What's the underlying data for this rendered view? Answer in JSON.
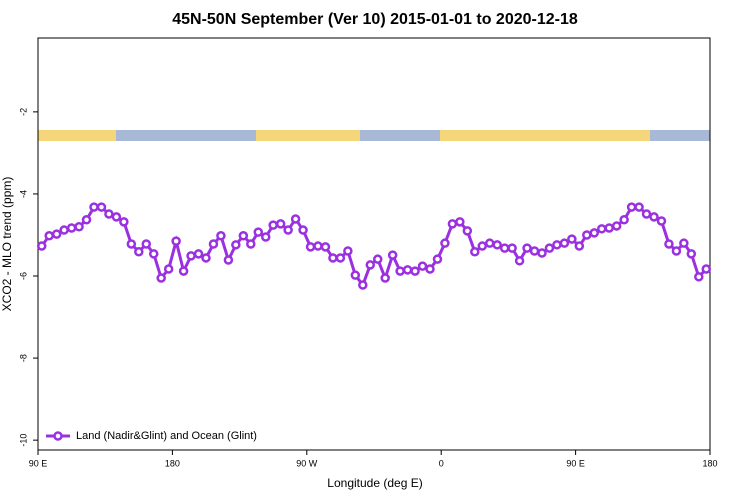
{
  "chart_data": {
    "type": "line",
    "title": "45N-50N September (Ver 10)   2015-01-01 to 2020-12-18",
    "xlabel": "Longitude (deg E)",
    "ylabel": "XCO2 - MLO trend (ppm)",
    "xlim": [
      90,
      540
    ],
    "xticks": [
      {
        "value": 90,
        "label": "90 E"
      },
      {
        "value": 180,
        "label": "180"
      },
      {
        "value": 270,
        "label": "90 W"
      },
      {
        "value": 360,
        "label": "0"
      },
      {
        "value": 450,
        "label": "90 E"
      },
      {
        "value": 540,
        "label": "180"
      }
    ],
    "ylim": [
      -10.24,
      -0.2
    ],
    "yticks": [
      -2,
      -4,
      -6,
      -8,
      -10
    ],
    "legend": "bottom-left",
    "x": [
      92.5,
      97.5,
      102.5,
      107.5,
      112.5,
      117.5,
      122.5,
      127.5,
      132.5,
      137.5,
      142.5,
      147.5,
      152.5,
      157.5,
      162.5,
      167.5,
      172.5,
      177.5,
      182.5,
      187.5,
      192.5,
      197.5,
      202.5,
      207.5,
      212.5,
      217.5,
      222.5,
      227.5,
      232.5,
      237.5,
      242.5,
      247.5,
      252.5,
      257.5,
      262.5,
      267.5,
      272.5,
      277.5,
      282.5,
      287.5,
      292.5,
      297.5,
      302.5,
      307.5,
      312.5,
      317.5,
      322.5,
      327.5,
      332.5,
      337.5,
      342.5,
      347.5,
      352.5,
      357.5,
      362.5,
      367.5,
      372.5,
      377.5,
      382.5,
      387.5,
      392.5,
      397.5,
      402.5,
      407.5,
      412.5,
      417.5,
      422.5,
      427.5,
      432.5,
      437.5,
      442.5,
      447.5,
      452.5,
      457.5,
      462.5,
      467.5,
      472.5,
      477.5,
      482.5,
      487.5,
      492.5,
      497.5,
      502.5,
      507.5,
      512.5,
      517.5,
      522.5,
      527.5,
      532.5,
      537.5
    ],
    "series": [
      {
        "name": "Land (Nadir&Glint) and Ocean (Glint)",
        "color": "#9b30e0",
        "values": [
          -5.27,
          -5.02,
          -4.98,
          -4.88,
          -4.83,
          -4.8,
          -4.63,
          -4.32,
          -4.32,
          -4.49,
          -4.56,
          -4.68,
          -5.22,
          -5.41,
          -5.22,
          -5.46,
          -6.05,
          -5.83,
          -5.15,
          -5.88,
          -5.51,
          -5.46,
          -5.56,
          -5.22,
          -5.02,
          -5.61,
          -5.24,
          -5.02,
          -5.22,
          -4.93,
          -5.05,
          -4.76,
          -4.73,
          -4.88,
          -4.61,
          -4.88,
          -5.29,
          -5.27,
          -5.29,
          -5.56,
          -5.56,
          -5.39,
          -5.98,
          -6.22,
          -5.73,
          -5.59,
          -6.05,
          -5.49,
          -5.88,
          -5.85,
          -5.88,
          -5.76,
          -5.83,
          -5.59,
          -5.2,
          -4.73,
          -4.68,
          -4.9,
          -5.41,
          -5.27,
          -5.2,
          -5.24,
          -5.32,
          -5.32,
          -5.63,
          -5.32,
          -5.39,
          -5.44,
          -5.32,
          -5.24,
          -5.2,
          -5.1,
          -5.27,
          -5.0,
          -4.95,
          -4.85,
          -4.83,
          -4.78,
          -4.63,
          -4.32,
          -4.32,
          -4.49,
          -4.56,
          -4.66,
          -5.22,
          -5.39,
          -5.2,
          -5.46,
          -6.02,
          -5.83
        ]
      }
    ]
  }
}
